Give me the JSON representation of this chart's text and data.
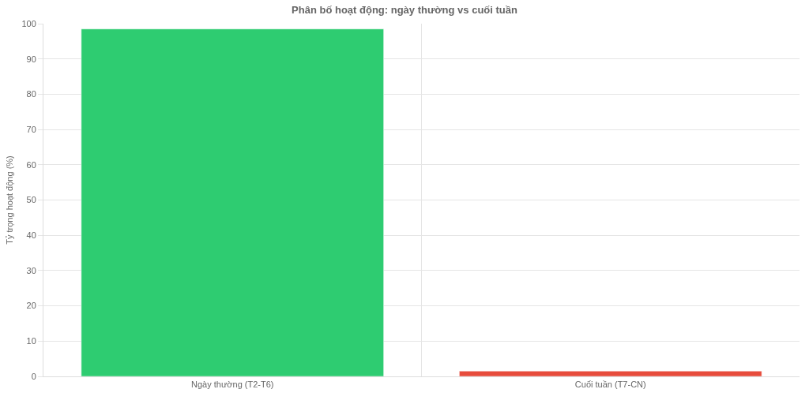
{
  "chart_data": {
    "type": "bar",
    "title": "Phân bố hoạt động: ngày thường vs cuối tuần",
    "ylabel": "Tỷ trọng hoạt động (%)",
    "categories": [
      "Ngày thường (T2-T6)",
      "Cuối tuần (T7-CN)"
    ],
    "values": [
      98.5,
      1.5
    ],
    "colors": [
      "#2ecc71",
      "#e74c3c"
    ],
    "ylim": [
      0,
      100
    ],
    "yticks": [
      0,
      10,
      20,
      30,
      40,
      50,
      60,
      70,
      80,
      90,
      100
    ],
    "grid": true
  }
}
